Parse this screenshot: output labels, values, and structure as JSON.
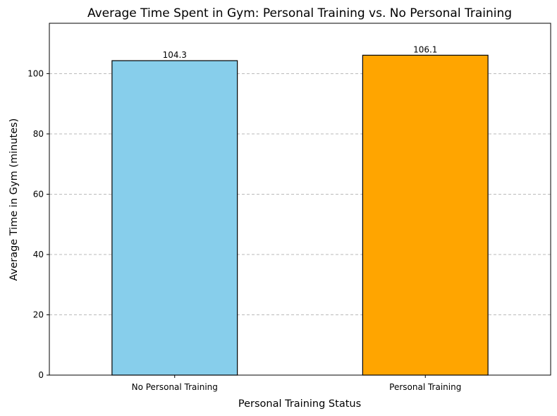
{
  "chart_data": {
    "type": "bar",
    "title": "Average Time Spent in Gym: Personal Training vs. No Personal Training",
    "xlabel": "Personal Training Status",
    "ylabel": "Average Time in Gym (minutes)",
    "categories": [
      "No Personal Training",
      "Personal Training"
    ],
    "values": [
      104.3,
      106.1
    ],
    "value_labels": [
      "104.3",
      "106.1"
    ],
    "colors": [
      "#87ceeb",
      "#ffa500"
    ],
    "ylim": [
      0,
      116.7
    ],
    "yticks": [
      0,
      20,
      40,
      60,
      80,
      100
    ],
    "grid": "y-axis dashed",
    "legend": "none"
  }
}
